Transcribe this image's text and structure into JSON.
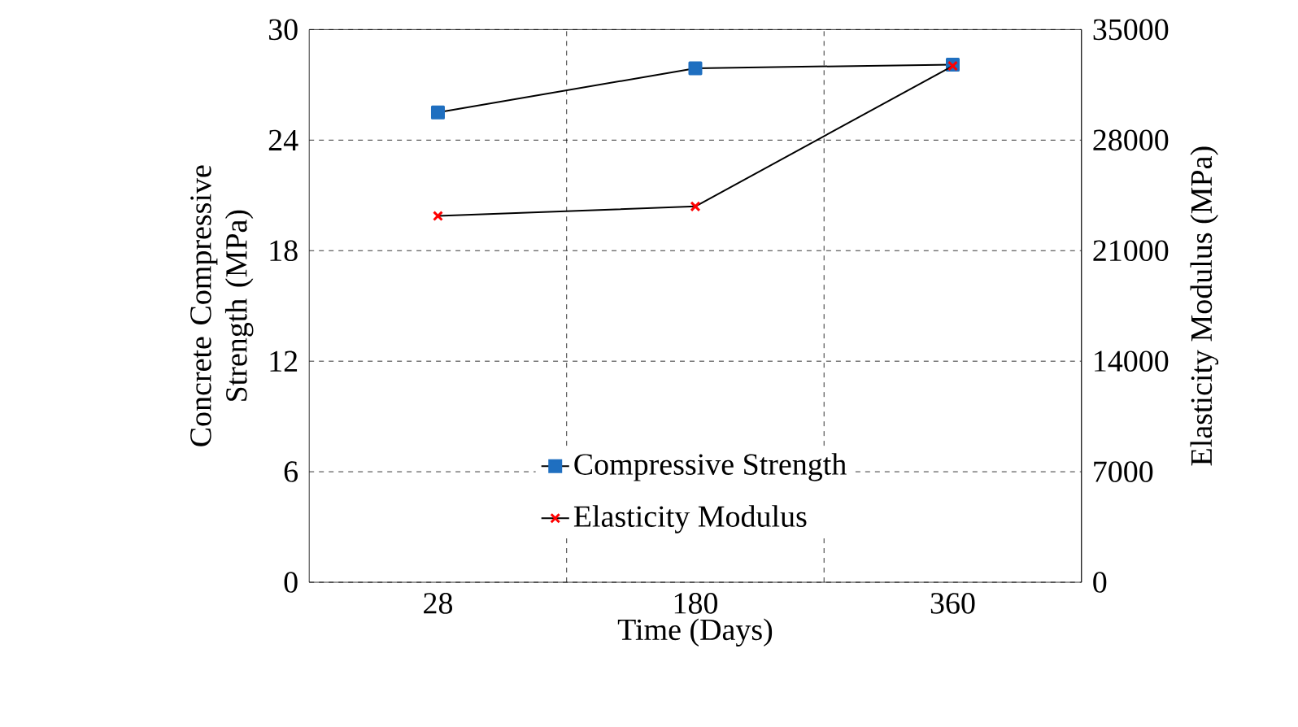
{
  "chart_data": {
    "type": "line",
    "xlabel": "Time (Days)",
    "ylabel": "Concrete Compressive Strength (MPa)",
    "y2label": "Elasticity Modulus (MPa)",
    "categories": [
      "28",
      "180",
      "360"
    ],
    "series": [
      {
        "name": "Compressive Strength",
        "color": "#1f6fc0",
        "marker": "square",
        "values": [
          25.5,
          27.9,
          28.1
        ]
      },
      {
        "name": "Elasticity Modulus",
        "color": "#ff0000",
        "marker": "cross",
        "axis": "y2",
        "values": [
          23200,
          23800,
          32700
        ]
      }
    ],
    "ylim": [
      0,
      30
    ],
    "yticks": [
      0,
      6,
      12,
      18,
      24,
      30
    ],
    "y2lim": [
      0,
      35000
    ],
    "y2ticks": [
      0,
      7000,
      14000,
      21000,
      28000,
      35000
    ],
    "grid": true,
    "legend": "bottom",
    "line_style": "solid"
  }
}
